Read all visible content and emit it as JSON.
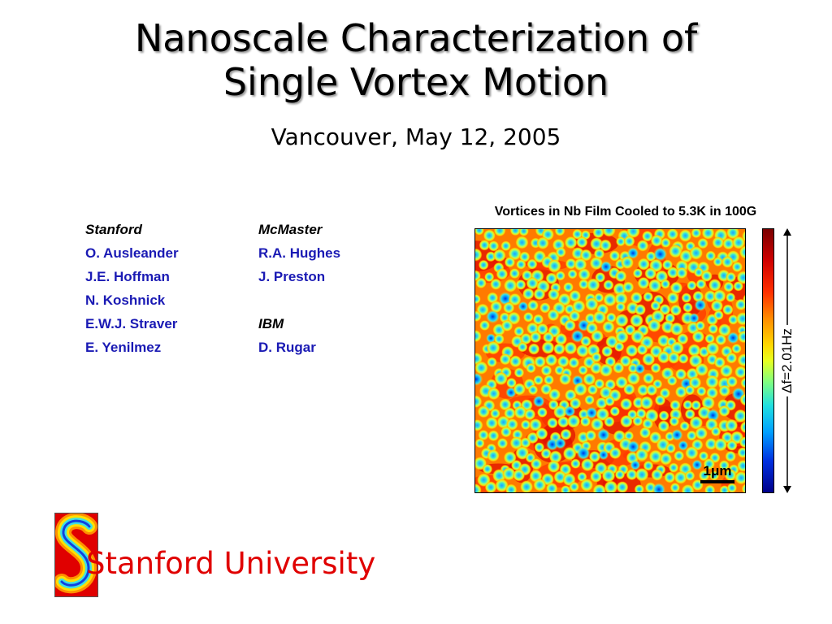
{
  "slide": {
    "title_line1": "Nanoscale Characterization of",
    "title_line2": "Single Vortex Motion",
    "subtitle": "Vancouver, May 12, 2005"
  },
  "authors": {
    "stanford": {
      "heading": "Stanford",
      "names": [
        "O. Ausleander",
        "J.E. Hoffman",
        "N. Koshnick",
        "E.W.J. Straver",
        "E. Yenilmez"
      ]
    },
    "mcmaster": {
      "heading": "McMaster",
      "names": [
        "R.A. Hughes",
        "J. Preston"
      ]
    },
    "ibm": {
      "heading": "IBM",
      "names": [
        "D. Rugar"
      ]
    }
  },
  "figure": {
    "caption": "Vortices in Nb Film Cooled to 5.3K in 100G",
    "scale_bar_label": "1μm",
    "colorbar_range_label": "Δf=2.01Hz",
    "colormap": [
      "#00008a",
      "#0030e0",
      "#00a0ff",
      "#20e0e0",
      "#80ff80",
      "#e8ff20",
      "#ffd800",
      "#ff8c00",
      "#ff3000",
      "#d00000",
      "#7a0000"
    ]
  },
  "footer": {
    "university": "Stanford University",
    "logo_icon": "stanford-s-logo-icon"
  },
  "colors": {
    "author_names": "#1a1ab4",
    "university_text": "#e00000"
  }
}
